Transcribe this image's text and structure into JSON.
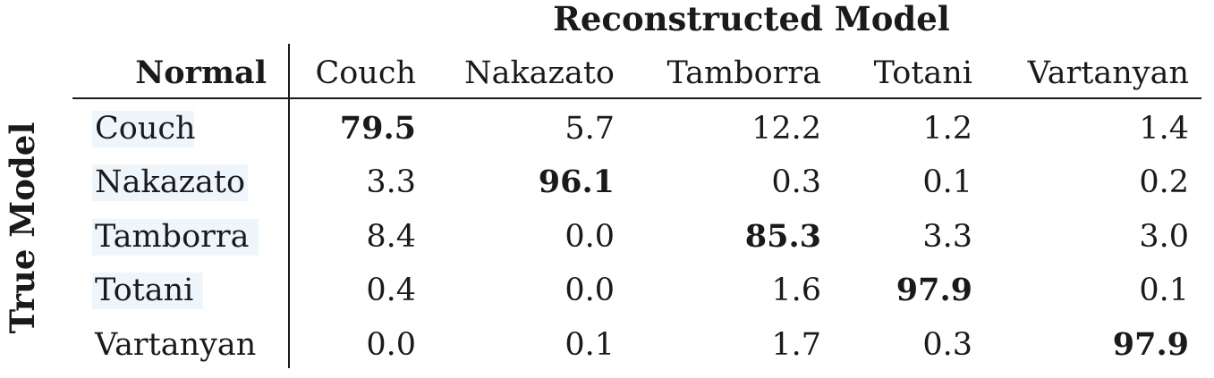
{
  "chart_data": {
    "type": "table",
    "title": "Reconstructed Model",
    "ylabel": "True Model",
    "corner_label": "Normal",
    "columns": [
      "Couch",
      "Nakazato",
      "Tamborra",
      "Totani",
      "Vartanyan"
    ],
    "rows": [
      "Couch",
      "Nakazato",
      "Tamborra",
      "Totani",
      "Vartanyan"
    ],
    "values": [
      [
        "79.5",
        "5.7",
        "12.2",
        "1.2",
        "1.4"
      ],
      [
        "3.3",
        "96.1",
        "0.3",
        "0.1",
        "0.2"
      ],
      [
        "8.4",
        "0.0",
        "85.3",
        "3.3",
        "3.0"
      ],
      [
        "0.4",
        "0.0",
        "1.6",
        "97.9",
        "0.1"
      ],
      [
        "0.0",
        "0.1",
        "1.7",
        "0.3",
        "97.9"
      ]
    ],
    "bold_diagonal": true,
    "row_label_highlight": "#eef6fc"
  }
}
